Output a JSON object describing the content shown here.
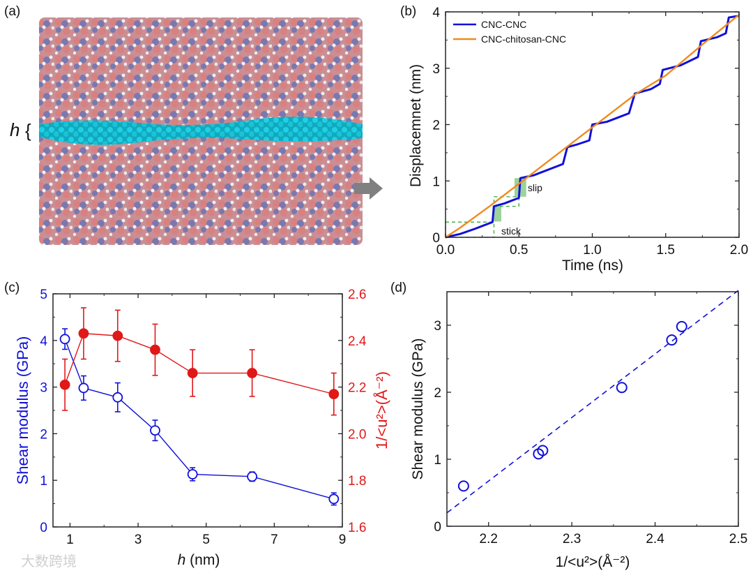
{
  "panel_labels": {
    "a": "(a)",
    "b": "(b)",
    "c": "(c)",
    "d": "(d)"
  },
  "panel_a": {
    "h_label": "h",
    "bracket": "{"
  },
  "watermark": "大数跨境",
  "colors": {
    "blue": "#1010d8",
    "orange": "#f08a1c",
    "red": "#e01818",
    "green": "#3aa63a",
    "cyan": "#19c3d8",
    "pink": "#d98080",
    "purple": "#7a78b0",
    "arrow": "#808080"
  },
  "chart_data": [
    {
      "id": "b",
      "type": "line",
      "xlabel": "Time (ns)",
      "ylabel": "Displacemnet (nm)",
      "xlim": [
        0,
        2.0
      ],
      "ylim": [
        0,
        4
      ],
      "xticks": [
        "0.0",
        "0.5",
        "1.0",
        "1.5",
        "2.0"
      ],
      "yticks": [
        "0",
        "1",
        "2",
        "3",
        "4"
      ],
      "legend_position": "top-left",
      "series": [
        {
          "name": "CNC-CNC",
          "color": "#1010d8",
          "x": [
            0,
            0.1,
            0.2,
            0.32,
            0.33,
            0.4,
            0.5,
            0.51,
            0.6,
            0.8,
            0.83,
            0.9,
            0.98,
            1.0,
            1.1,
            1.25,
            1.29,
            1.4,
            1.46,
            1.48,
            1.6,
            1.72,
            1.74,
            1.85,
            1.91,
            1.93,
            2.0
          ],
          "y": [
            0,
            0.06,
            0.15,
            0.27,
            0.55,
            0.6,
            0.7,
            1.05,
            1.1,
            1.3,
            1.6,
            1.65,
            1.72,
            2.0,
            2.05,
            2.2,
            2.55,
            2.63,
            2.72,
            2.97,
            3.05,
            3.2,
            3.48,
            3.55,
            3.62,
            3.9,
            3.93
          ]
        },
        {
          "name": "CNC-chitosan-CNC",
          "color": "#f08a1c",
          "x": [
            0,
            0.1,
            0.3,
            0.5,
            0.8,
            1.0,
            1.3,
            1.5,
            1.75,
            2.0
          ],
          "y": [
            0,
            0.17,
            0.55,
            0.95,
            1.55,
            1.95,
            2.55,
            2.87,
            3.42,
            3.95
          ]
        }
      ],
      "annotations": [
        {
          "text": "stick",
          "x": 0.38,
          "y": 0.05
        },
        {
          "text": "slip",
          "x": 0.56,
          "y": 0.82
        }
      ]
    },
    {
      "id": "c",
      "type": "line",
      "xlabel_italic": "h",
      "xlabel": " (nm)",
      "ylabel": "Shear modulus (GPa)",
      "y2label": "1/<u²>(Å⁻²)",
      "xlim": [
        0.5,
        9
      ],
      "ylim": [
        0,
        5
      ],
      "y2lim": [
        1.6,
        2.6
      ],
      "xticks": [
        "1",
        "3",
        "5",
        "7",
        "9"
      ],
      "yticks": [
        "0",
        "1",
        "2",
        "3",
        "4",
        "5"
      ],
      "y2ticks": [
        "1.6",
        "1.8",
        "2.0",
        "2.2",
        "2.4",
        "2.6"
      ],
      "x": [
        0.85,
        1.4,
        2.4,
        3.5,
        4.6,
        6.35,
        8.75
      ],
      "series": [
        {
          "name": "Shear modulus",
          "axis": "left",
          "marker": "open-circle",
          "color": "#1010d8",
          "values": [
            4.03,
            2.98,
            2.78,
            2.07,
            1.13,
            1.08,
            0.6
          ],
          "errors": [
            0.22,
            0.26,
            0.31,
            0.22,
            0.14,
            0.1,
            0.13
          ]
        },
        {
          "name": "1/<u2>",
          "axis": "right",
          "marker": "filled-circle",
          "color": "#e01818",
          "values": [
            2.21,
            2.43,
            2.42,
            2.36,
            2.26,
            2.26,
            2.17
          ],
          "errors": [
            0.11,
            0.11,
            0.11,
            0.11,
            0.1,
            0.1,
            0.09
          ]
        }
      ]
    },
    {
      "id": "d",
      "type": "scatter",
      "xlabel": "1/<u²>(Å⁻²)",
      "ylabel": "Shear modulus (GPa)",
      "xlim": [
        2.15,
        2.5
      ],
      "ylim": [
        0,
        3.5
      ],
      "xticks": [
        "2.2",
        "2.3",
        "2.4",
        "2.5"
      ],
      "yticks": [
        "0",
        "1",
        "2",
        "3"
      ],
      "x": [
        2.17,
        2.26,
        2.265,
        2.36,
        2.42,
        2.432
      ],
      "y": [
        0.6,
        1.08,
        1.13,
        2.07,
        2.78,
        2.98
      ],
      "fit_line": {
        "x": [
          2.15,
          2.5
        ],
        "y": [
          0.2,
          3.52
        ],
        "style": "dashed"
      }
    }
  ]
}
